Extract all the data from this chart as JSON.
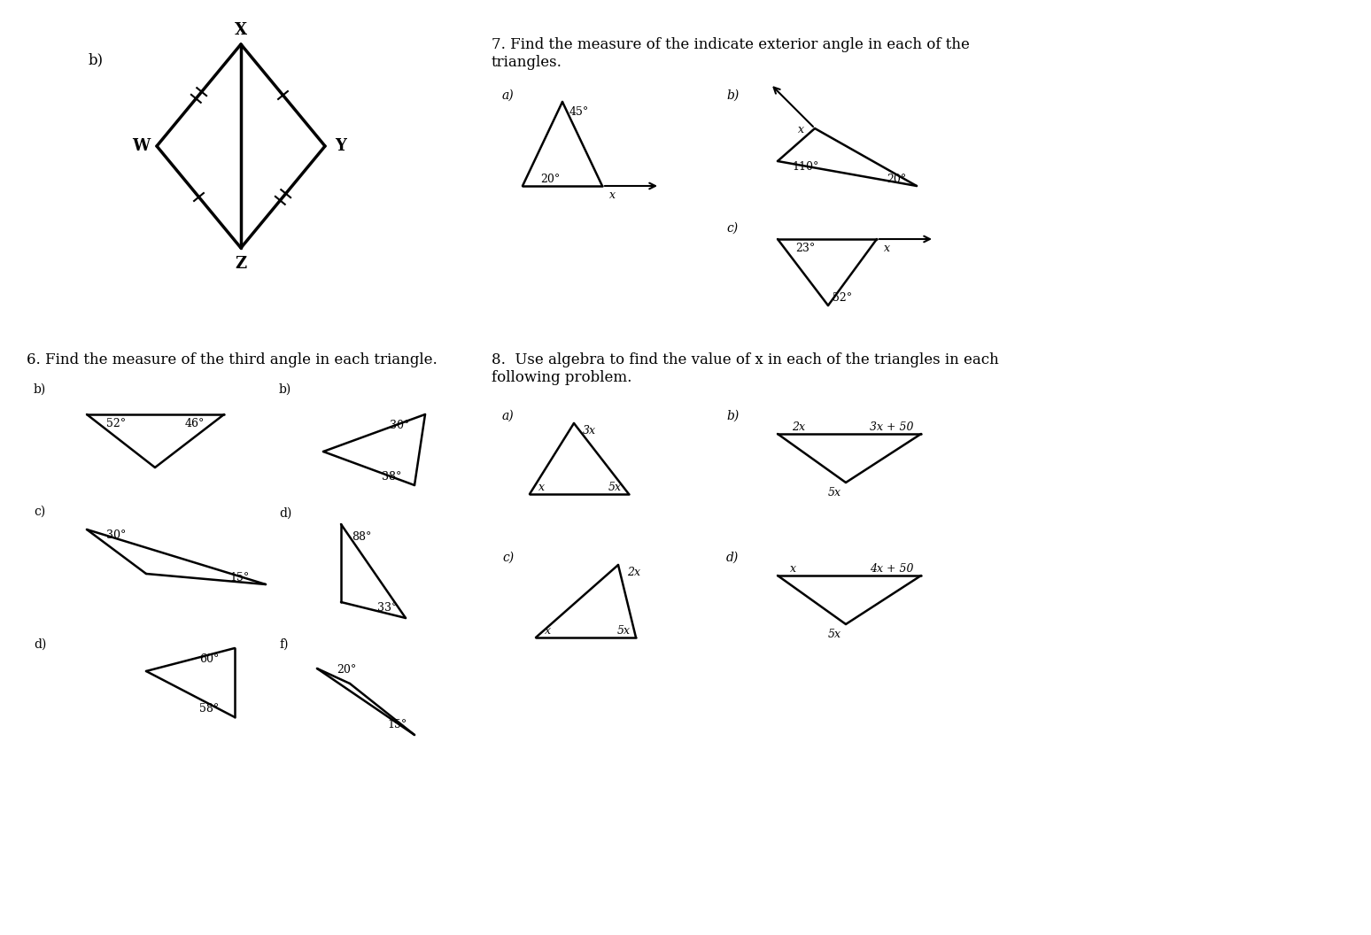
{
  "bg_color": "#ffffff",
  "title7": "7. Find the measure of the indicate exterior angle in each of the\ntriangles.",
  "title6": "6. Find the measure of the third angle in each triangle.",
  "title8": "8.  Use algebra to find the value of x in each of the triangles in each\nfollowing problem."
}
